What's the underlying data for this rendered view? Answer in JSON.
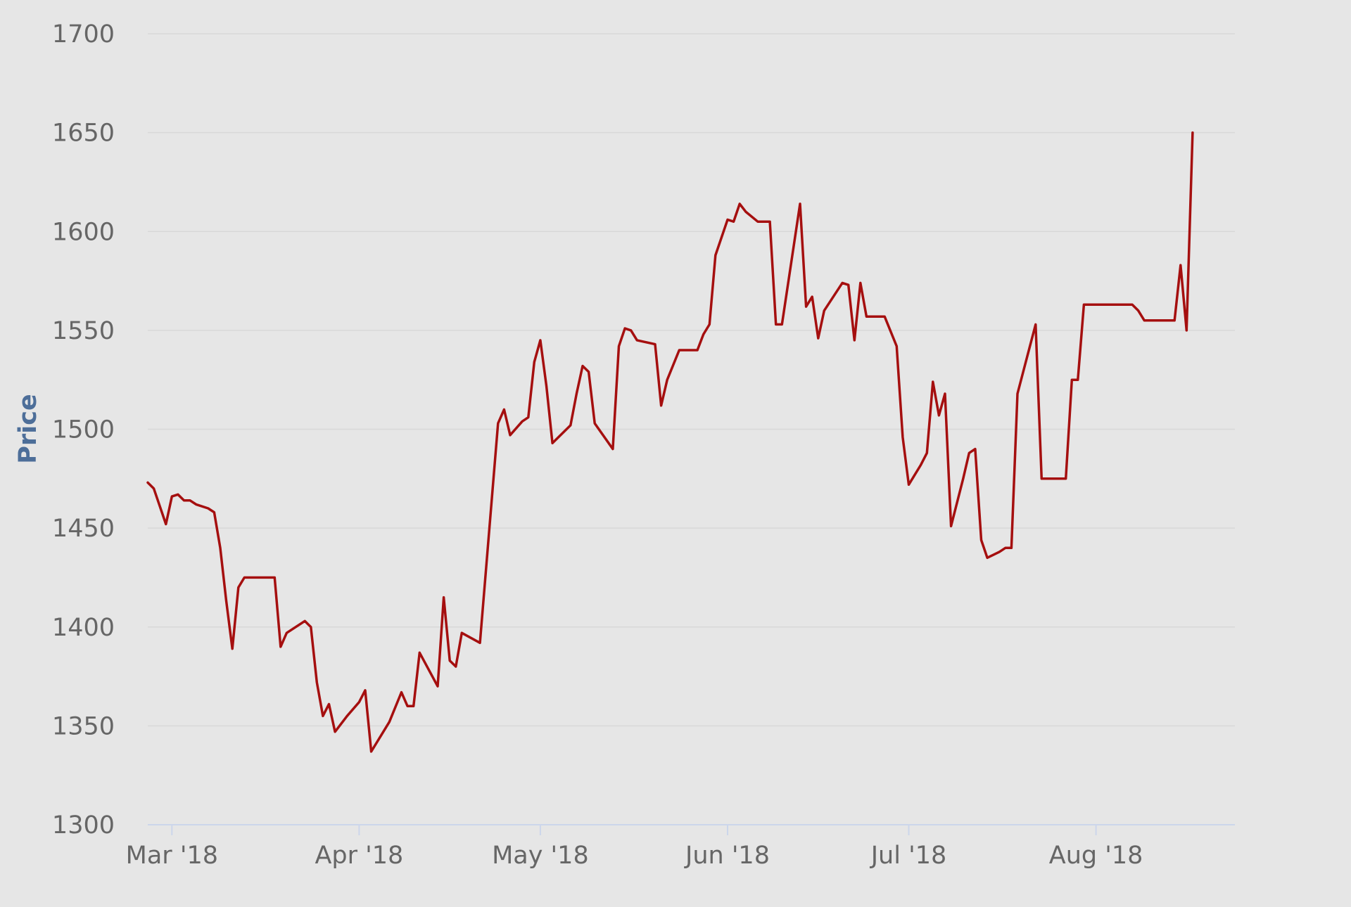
{
  "chart_data": {
    "type": "line",
    "title": "",
    "xlabel": "",
    "ylabel": "Price",
    "ylim": [
      1300,
      1700
    ],
    "yticks": [
      "1700",
      "1650",
      "1600",
      "1550",
      "1500",
      "1450",
      "1400",
      "1350",
      "1300"
    ],
    "xlim": [
      "2018-02-25",
      "2018-08-24"
    ],
    "xticks": [
      {
        "label": "Mar '18",
        "date": "2018-03-01"
      },
      {
        "label": "Apr '18",
        "date": "2018-04-01"
      },
      {
        "label": "May '18",
        "date": "2018-05-01"
      },
      {
        "label": "Jun '18",
        "date": "2018-06-01"
      },
      {
        "label": "Jul '18",
        "date": "2018-07-01"
      },
      {
        "label": "Aug '18",
        "date": "2018-08-01"
      }
    ],
    "grid": "horizontal",
    "legend": "none",
    "line_color": "#a50f0f",
    "series": [
      {
        "points": [
          [
            "2018-02-25",
            1473
          ],
          [
            "2018-02-26",
            1470
          ],
          [
            "2018-02-27",
            1461
          ],
          [
            "2018-02-28",
            1452
          ],
          [
            "2018-03-01",
            1466
          ],
          [
            "2018-03-02",
            1467
          ],
          [
            "2018-03-03",
            1464
          ],
          [
            "2018-03-04",
            1464
          ],
          [
            "2018-03-05",
            1462
          ],
          [
            "2018-03-07",
            1460
          ],
          [
            "2018-03-08",
            1458
          ],
          [
            "2018-03-09",
            1440
          ],
          [
            "2018-03-10",
            1413
          ],
          [
            "2018-03-11",
            1389
          ],
          [
            "2018-03-12",
            1420
          ],
          [
            "2018-03-13",
            1425
          ],
          [
            "2018-03-16",
            1425
          ],
          [
            "2018-03-18",
            1425
          ],
          [
            "2018-03-19",
            1390
          ],
          [
            "2018-03-20",
            1397
          ],
          [
            "2018-03-23",
            1403
          ],
          [
            "2018-03-24",
            1400
          ],
          [
            "2018-03-25",
            1372
          ],
          [
            "2018-03-26",
            1355
          ],
          [
            "2018-03-27",
            1361
          ],
          [
            "2018-03-28",
            1347
          ],
          [
            "2018-03-30",
            1355
          ],
          [
            "2018-04-01",
            1362
          ],
          [
            "2018-04-02",
            1368
          ],
          [
            "2018-04-03",
            1337
          ],
          [
            "2018-04-06",
            1352
          ],
          [
            "2018-04-08",
            1367
          ],
          [
            "2018-04-09",
            1360
          ],
          [
            "2018-04-10",
            1360
          ],
          [
            "2018-04-11",
            1387
          ],
          [
            "2018-04-14",
            1370
          ],
          [
            "2018-04-15",
            1415
          ],
          [
            "2018-04-16",
            1383
          ],
          [
            "2018-04-17",
            1380
          ],
          [
            "2018-04-18",
            1397
          ],
          [
            "2018-04-21",
            1392
          ],
          [
            "2018-04-24",
            1503
          ],
          [
            "2018-04-25",
            1510
          ],
          [
            "2018-04-26",
            1497
          ],
          [
            "2018-04-28",
            1504
          ],
          [
            "2018-04-29",
            1506
          ],
          [
            "2018-04-30",
            1534
          ],
          [
            "2018-05-01",
            1545
          ],
          [
            "2018-05-02",
            1522
          ],
          [
            "2018-05-03",
            1493
          ],
          [
            "2018-05-06",
            1502
          ],
          [
            "2018-05-07",
            1518
          ],
          [
            "2018-05-08",
            1532
          ],
          [
            "2018-05-09",
            1529
          ],
          [
            "2018-05-10",
            1503
          ],
          [
            "2018-05-13",
            1490
          ],
          [
            "2018-05-14",
            1542
          ],
          [
            "2018-05-15",
            1551
          ],
          [
            "2018-05-16",
            1550
          ],
          [
            "2018-05-17",
            1545
          ],
          [
            "2018-05-20",
            1543
          ],
          [
            "2018-05-21",
            1512
          ],
          [
            "2018-05-22",
            1525
          ],
          [
            "2018-05-24",
            1540
          ],
          [
            "2018-05-27",
            1540
          ],
          [
            "2018-05-28",
            1548
          ],
          [
            "2018-05-29",
            1553
          ],
          [
            "2018-05-30",
            1588
          ],
          [
            "2018-06-01",
            1606
          ],
          [
            "2018-06-02",
            1605
          ],
          [
            "2018-06-03",
            1614
          ],
          [
            "2018-06-04",
            1610
          ],
          [
            "2018-06-06",
            1605
          ],
          [
            "2018-06-08",
            1605
          ],
          [
            "2018-06-09",
            1553
          ],
          [
            "2018-06-10",
            1553
          ],
          [
            "2018-06-13",
            1614
          ],
          [
            "2018-06-14",
            1562
          ],
          [
            "2018-06-15",
            1567
          ],
          [
            "2018-06-16",
            1546
          ],
          [
            "2018-06-17",
            1560
          ],
          [
            "2018-06-20",
            1574
          ],
          [
            "2018-06-21",
            1573
          ],
          [
            "2018-06-22",
            1545
          ],
          [
            "2018-06-23",
            1574
          ],
          [
            "2018-06-24",
            1557
          ],
          [
            "2018-06-27",
            1557
          ],
          [
            "2018-06-29",
            1542
          ],
          [
            "2018-06-30",
            1496
          ],
          [
            "2018-07-01",
            1472
          ],
          [
            "2018-07-03",
            1482
          ],
          [
            "2018-07-04",
            1488
          ],
          [
            "2018-07-05",
            1524
          ],
          [
            "2018-07-06",
            1507
          ],
          [
            "2018-07-07",
            1518
          ],
          [
            "2018-07-08",
            1451
          ],
          [
            "2018-07-10",
            1475
          ],
          [
            "2018-07-11",
            1488
          ],
          [
            "2018-07-12",
            1490
          ],
          [
            "2018-07-13",
            1444
          ],
          [
            "2018-07-14",
            1435
          ],
          [
            "2018-07-16",
            1438
          ],
          [
            "2018-07-17",
            1440
          ],
          [
            "2018-07-18",
            1440
          ],
          [
            "2018-07-19",
            1518
          ],
          [
            "2018-07-22",
            1553
          ],
          [
            "2018-07-23",
            1475
          ],
          [
            "2018-07-25",
            1475
          ],
          [
            "2018-07-27",
            1475
          ],
          [
            "2018-07-28",
            1525
          ],
          [
            "2018-07-29",
            1525
          ],
          [
            "2018-07-30",
            1563
          ],
          [
            "2018-08-03",
            1563
          ],
          [
            "2018-08-07",
            1563
          ],
          [
            "2018-08-08",
            1560
          ],
          [
            "2018-08-09",
            1555
          ],
          [
            "2018-08-11",
            1555
          ],
          [
            "2018-08-14",
            1555
          ],
          [
            "2018-08-15",
            1583
          ],
          [
            "2018-08-16",
            1550
          ],
          [
            "2018-08-17",
            1650
          ]
        ]
      }
    ]
  }
}
